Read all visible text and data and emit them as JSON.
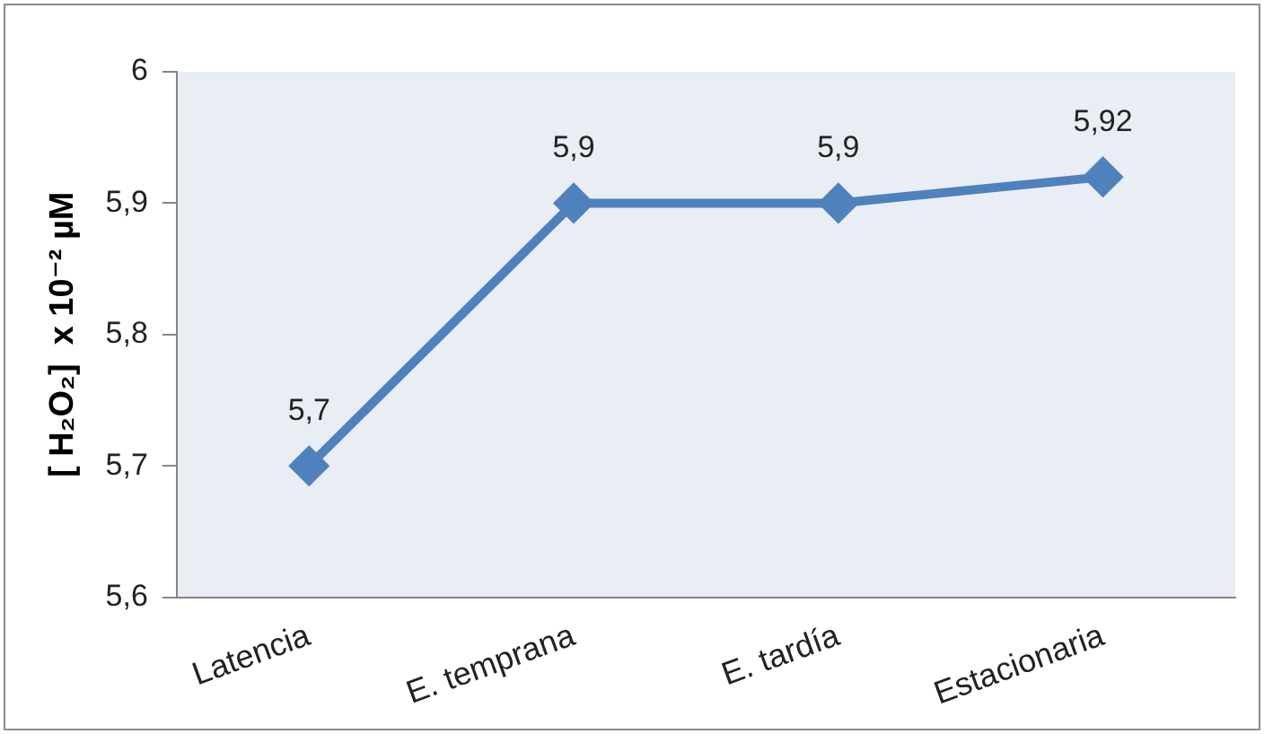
{
  "chart_data": {
    "type": "line",
    "ylabel": "[ H₂O₂]  x 10⁻² µM",
    "categories": [
      "Latencia",
      "E. temprana",
      "E. tardía",
      "Estacionaria"
    ],
    "series": [
      {
        "color": "#4f81bd",
        "values": [
          5.7,
          5.9,
          5.9,
          5.92
        ],
        "value_labels": [
          "5,7",
          "5,9",
          "5,9",
          "5,92"
        ]
      }
    ],
    "ylim": [
      5.6,
      6
    ],
    "yticks": [
      {
        "value": 5.6,
        "label": "5,6"
      },
      {
        "value": 5.7,
        "label": "5,7"
      },
      {
        "value": 5.8,
        "label": "5,8"
      },
      {
        "value": 5.9,
        "label": "5,9"
      },
      {
        "value": 6,
        "label": "6"
      }
    ],
    "marker": "diamond",
    "line_style": "solid"
  }
}
